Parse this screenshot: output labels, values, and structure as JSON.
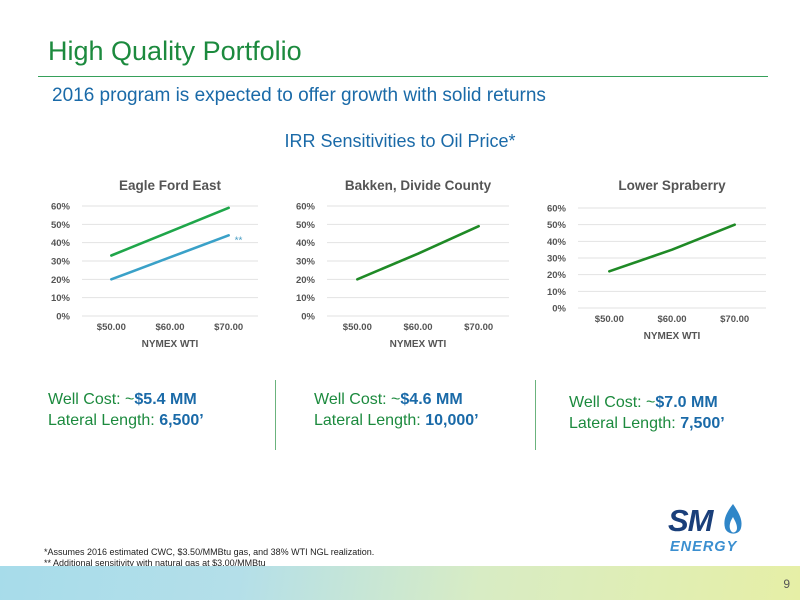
{
  "header": {
    "title": "High Quality Portfolio",
    "subtitle": "2016 program is expected to offer growth with solid returns",
    "section_title": "IRR Sensitivities to Oil Price*"
  },
  "chart_data": [
    {
      "type": "line",
      "title": "Eagle Ford East",
      "xlabel": "NYMEX WTI",
      "ylabel": "",
      "categories": [
        "$50.00",
        "$60.00",
        "$70.00"
      ],
      "ylim": [
        0,
        60
      ],
      "yticks": [
        "0%",
        "10%",
        "20%",
        "30%",
        "40%",
        "50%",
        "60%"
      ],
      "series": [
        {
          "values": [
            33,
            46,
            59
          ],
          "color": "#1fa64a"
        },
        {
          "values": [
            20,
            32,
            44
          ],
          "color": "#3aa1c8"
        }
      ],
      "annotations": [
        {
          "text": "**",
          "series": 1,
          "index": 2
        }
      ],
      "grid": true
    },
    {
      "type": "line",
      "title": "Bakken, Divide County",
      "xlabel": "NYMEX WTI",
      "ylabel": "",
      "categories": [
        "$50.00",
        "$60.00",
        "$70.00"
      ],
      "ylim": [
        0,
        60
      ],
      "yticks": [
        "0%",
        "10%",
        "20%",
        "30%",
        "40%",
        "50%",
        "60%"
      ],
      "series": [
        {
          "values": [
            20,
            34,
            49
          ],
          "color": "#1f8a26"
        }
      ],
      "grid": true
    },
    {
      "type": "line",
      "title": "Lower Spraberry",
      "xlabel": "NYMEX WTI",
      "ylabel": "",
      "categories": [
        "$50.00",
        "$60.00",
        "$70.00"
      ],
      "ylim": [
        0,
        60
      ],
      "yticks": [
        "0%",
        "10%",
        "20%",
        "30%",
        "40%",
        "50%",
        "60%"
      ],
      "series": [
        {
          "values": [
            22,
            35,
            50
          ],
          "color": "#1f8a26"
        }
      ],
      "grid": true
    }
  ],
  "metrics": [
    {
      "cost_label": "Well Cost: ~",
      "cost_value": "$5.4 MM",
      "length_label": "Lateral Length: ",
      "length_value": "6,500’"
    },
    {
      "cost_label": "Well Cost: ~",
      "cost_value": "$4.6 MM",
      "length_label": "Lateral Length: ",
      "length_value": "10,000’"
    },
    {
      "cost_label": "Well Cost: ~",
      "cost_value": "$7.0 MM",
      "length_label": "Lateral Length: ",
      "length_value": "7,500’"
    }
  ],
  "footnotes": [
    "*Assumes 2016 estimated CWC, $3.50/MMBtu gas, and 38% WTI NGL realization.",
    "** Additional sensitivity with natural gas at $3.00/MMBtu"
  ],
  "logo": {
    "line1": "SM",
    "line2": "ENERGY",
    "flame_color": "#2f86c8"
  },
  "page_number": "9",
  "colors": {
    "title_green": "#1c8a3e",
    "accent_blue": "#1a6aa8"
  }
}
